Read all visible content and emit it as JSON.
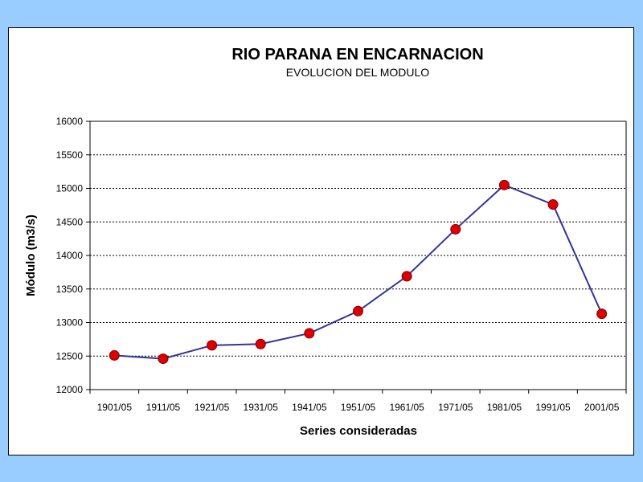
{
  "chart_data": {
    "type": "line",
    "title": "RIO PARANA EN ENCARNACION",
    "subtitle": "EVOLUCION DEL MODULO",
    "xlabel": "Series consideradas",
    "ylabel": "Módulo (m3/s)",
    "categories": [
      "1901/05",
      "1911/05",
      "1921/05",
      "1931/05",
      "1941/05",
      "1951/05",
      "1961/05",
      "1971/05",
      "1981/05",
      "1991/05",
      "2001/05"
    ],
    "series": [
      {
        "name": "Módulo",
        "values": [
          12510,
          12460,
          12660,
          12680,
          12840,
          13170,
          13690,
          14390,
          15050,
          14760,
          13130
        ]
      }
    ],
    "ylim": [
      12000,
      16000
    ],
    "yticks": [
      12000,
      12500,
      13000,
      13500,
      14000,
      14500,
      15000,
      15500,
      16000
    ],
    "grid": true,
    "line_color": "#333399",
    "marker_color": "#dd0000",
    "marker_edge": "#800000"
  }
}
